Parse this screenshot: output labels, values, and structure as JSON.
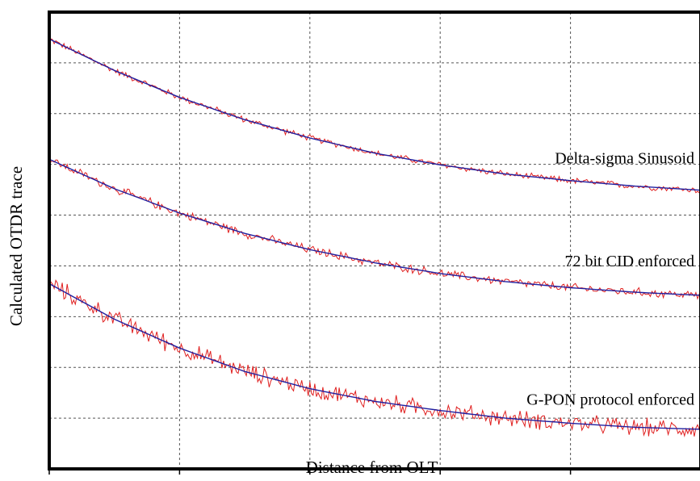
{
  "chart_data": {
    "type": "line",
    "title": "",
    "xlabel": "Distance from OLT",
    "ylabel": "Calculated OTDR trace",
    "xlim": [
      0,
      5
    ],
    "ylim": [
      0,
      9
    ],
    "grid": true,
    "x_ticks": [
      0,
      1,
      2,
      3,
      4,
      5
    ],
    "y_gridlines": [
      1,
      2,
      3,
      4,
      5,
      6,
      7,
      8
    ],
    "tick_labels_shown": false,
    "series": [
      {
        "name": "Delta-sigma Sinusoid",
        "x": [
          0,
          0.5,
          1,
          1.5,
          2,
          2.5,
          3,
          3.5,
          4,
          4.5,
          5
        ],
        "values": [
          8.47,
          7.85,
          7.32,
          6.88,
          6.52,
          6.22,
          5.99,
          5.81,
          5.68,
          5.57,
          5.49
        ],
        "noise": 0.05
      },
      {
        "name": "72 bit CID enforced",
        "x": [
          0,
          0.5,
          1,
          1.5,
          2,
          2.5,
          3,
          3.5,
          4,
          4.5,
          5
        ],
        "values": [
          6.1,
          5.52,
          5.04,
          4.64,
          4.32,
          4.06,
          3.85,
          3.69,
          3.57,
          3.48,
          3.42
        ],
        "noise": 0.07
      },
      {
        "name": "G-PON protocol enforced",
        "x": [
          0,
          0.5,
          1,
          1.5,
          2,
          2.5,
          3,
          3.5,
          4,
          4.5,
          5
        ],
        "values": [
          3.65,
          2.95,
          2.38,
          1.92,
          1.58,
          1.33,
          1.15,
          1.0,
          0.9,
          0.82,
          0.78
        ],
        "noise": 0.14
      }
    ],
    "colors": {
      "fit_line": "#2020a0",
      "measured_trace": "#e02020",
      "grid": "#555555",
      "frame": "#000000"
    }
  }
}
